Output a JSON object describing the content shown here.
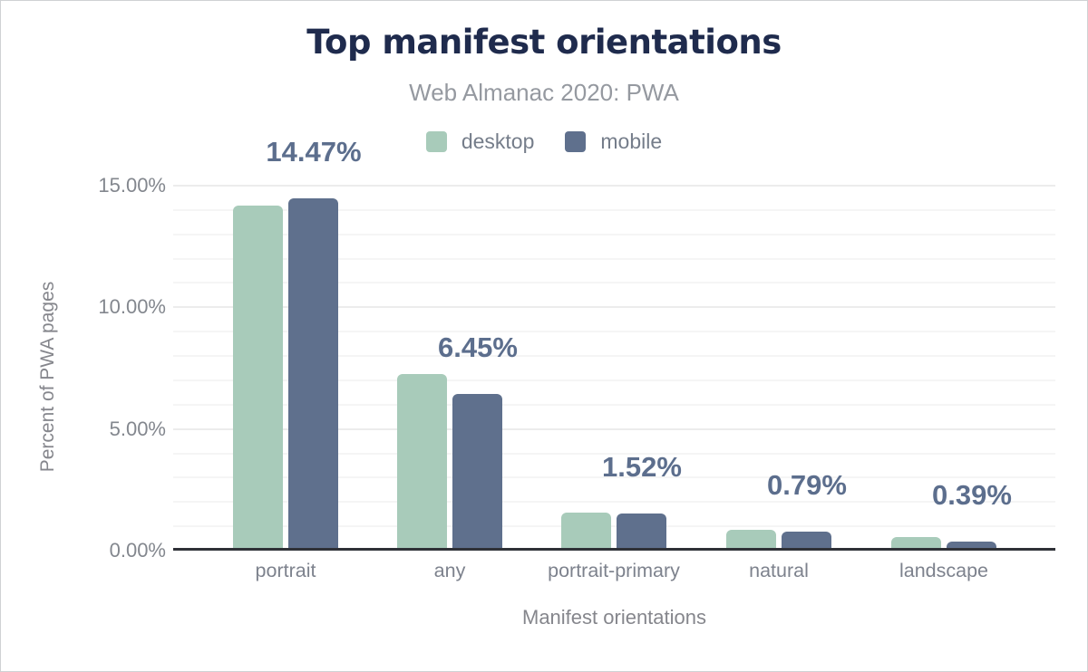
{
  "chart_data": {
    "type": "bar",
    "title": "Top manifest orientations",
    "subtitle": "Web Almanac 2020: PWA",
    "xlabel": "Manifest orientations",
    "ylabel": "Percent of PWA pages",
    "categories": [
      "portrait",
      "any",
      "portrait-primary",
      "natural",
      "landscape"
    ],
    "series": [
      {
        "name": "desktop",
        "color": "#a8cbba",
        "values": [
          14.18,
          7.25,
          1.57,
          0.87,
          0.54
        ]
      },
      {
        "name": "mobile",
        "color": "#5f708d",
        "values": [
          14.47,
          6.45,
          1.52,
          0.79,
          0.39
        ]
      }
    ],
    "data_labels": [
      "14.47%",
      "6.45%",
      "1.52%",
      "0.79%",
      "0.39%"
    ],
    "data_labels_series": "mobile",
    "y_ticks": [
      {
        "label": "15.00%",
        "value": 15
      },
      {
        "label": "10.00%",
        "value": 10
      },
      {
        "label": "5.00%",
        "value": 5
      },
      {
        "label": "0.00%",
        "value": 0
      }
    ],
    "ylim": [
      0,
      15
    ],
    "minor_grid_step_pct": 1,
    "major_grid_step_pct": 5,
    "grid": true,
    "legend_position": "top",
    "colors": {
      "title": "#1f2b4d",
      "subtitle": "#9599a0",
      "value_label": "#5c6e8d",
      "axis_text": "#83878e",
      "axis_line": "#2f3137",
      "grid_minor": "#f5f5f5",
      "grid_major": "#ececec"
    }
  }
}
